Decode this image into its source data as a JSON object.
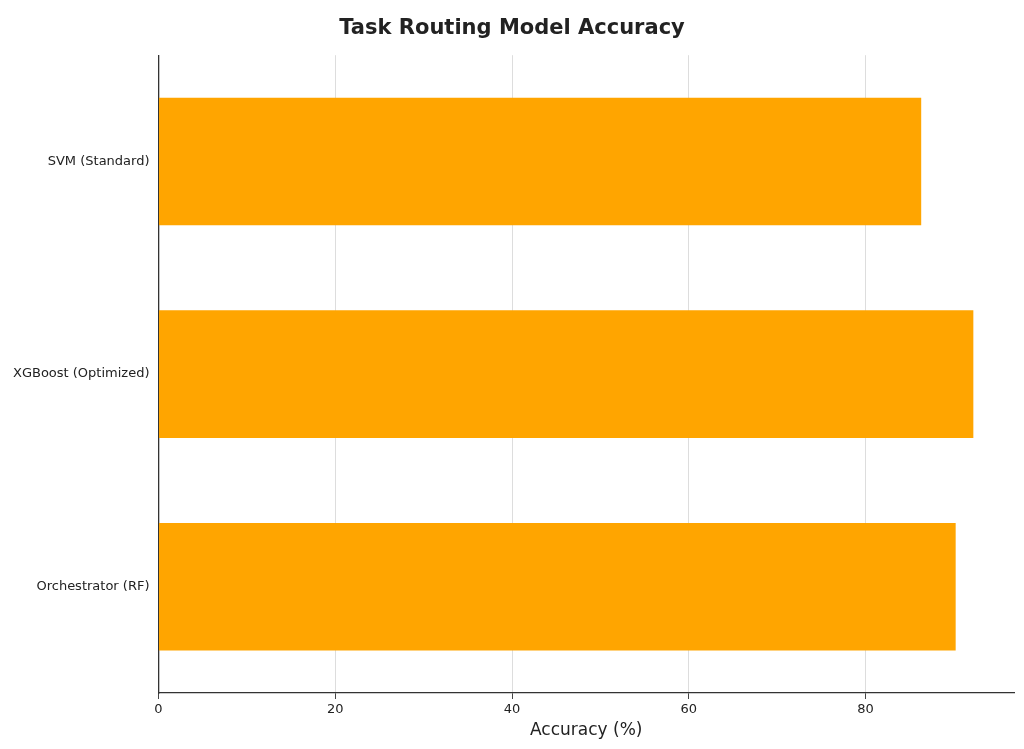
{
  "chart_data": {
    "type": "bar",
    "orientation": "horizontal",
    "title": "Task Routing Model Accuracy",
    "xlabel": "Accuracy (%)",
    "categories": [
      "SVM (Standard)",
      "XGBoost (Optimized)",
      "Orchestrator (RF)"
    ],
    "values": [
      86.3,
      92.2,
      90.2
    ],
    "color": "#ffa500",
    "xlim": [
      0,
      96.8
    ],
    "xticks": [
      0,
      20,
      40,
      60,
      80
    ],
    "grid": "x",
    "legend": false
  }
}
